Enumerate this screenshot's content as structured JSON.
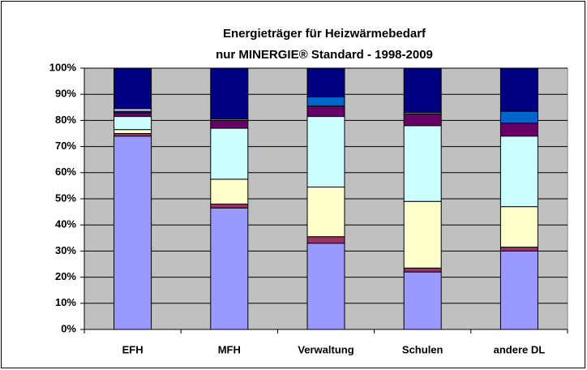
{
  "chart_data": {
    "type": "stacked_bar",
    "title": [
      "Energieträger für Heizwärmebedarf",
      "nur MINERGIE® Standard - 1998-2009"
    ],
    "categories": [
      "EFH",
      "MFH",
      "Verwaltung",
      "Schulen",
      "andere DL"
    ],
    "series": [
      {
        "color": "#9999FF",
        "values": [
          74,
          46.5,
          33,
          22,
          30
        ]
      },
      {
        "color": "#993366",
        "values": [
          1,
          1.5,
          2.5,
          1.5,
          1.5
        ]
      },
      {
        "color": "#FFFFCC",
        "values": [
          1.5,
          9.5,
          19,
          25.5,
          15.5
        ]
      },
      {
        "color": "#CCFFFF",
        "values": [
          5,
          19.5,
          27,
          29,
          27
        ]
      },
      {
        "color": "#660066",
        "values": [
          1.5,
          3,
          4,
          4.5,
          5
        ]
      },
      {
        "color": "#0066CC",
        "values": [
          0.5,
          0,
          3.5,
          0,
          4.5
        ]
      },
      {
        "color": "#CCCCFF",
        "values": [
          1,
          0.5,
          0,
          0.5,
          0
        ]
      },
      {
        "color": "#000080",
        "values": [
          15.5,
          19.5,
          11,
          17,
          16.5
        ]
      }
    ],
    "ylim": [
      0,
      100
    ],
    "yticks": [
      {
        "value": 0,
        "label": "0%"
      },
      {
        "value": 10,
        "label": "10%"
      },
      {
        "value": 20,
        "label": "20%"
      },
      {
        "value": 30,
        "label": "30%"
      },
      {
        "value": 40,
        "label": "40%"
      },
      {
        "value": 50,
        "label": "50%"
      },
      {
        "value": 60,
        "label": "60%"
      },
      {
        "value": 70,
        "label": "70%"
      },
      {
        "value": 80,
        "label": "80%"
      },
      {
        "value": 90,
        "label": "90%"
      },
      {
        "value": 100,
        "label": "100%"
      }
    ],
    "grid": true
  }
}
